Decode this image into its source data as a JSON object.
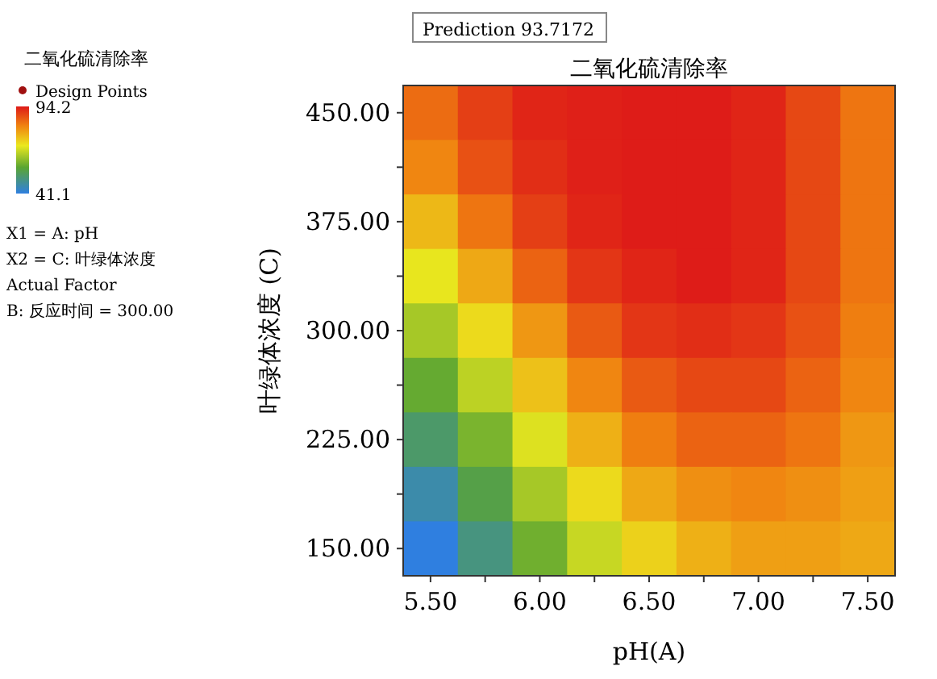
{
  "chart_data": {
    "type": "heatmap",
    "title": "二氧化硫清除率",
    "xlabel": "pH(A)",
    "ylabel": "叶绿体浓度 (C)",
    "clabel": "二氧化硫清除率",
    "annotations": [
      "Prediction 93.7172",
      "Design Points",
      "X1 = A: pH",
      "X2 = C: 叶绿体浓度",
      "Actual Factor",
      "B: 反应时间 = 300.00"
    ],
    "categories": [
      "5.50",
      null,
      "6.00",
      null,
      "6.50",
      null,
      "7.00",
      null,
      "7.50"
    ],
    "y_categories": [
      "450.00",
      null,
      "375.00",
      null,
      "300.00",
      null,
      "225.00",
      null,
      "150.00"
    ],
    "clim": [
      41.1,
      94.2
    ],
    "cticks": [
      41.1,
      94.2
    ],
    "cells": [
      [
        85,
        90,
        93,
        93.5,
        94,
        94,
        93,
        89,
        84
      ],
      [
        82,
        88,
        92,
        93.5,
        94,
        94,
        93,
        89,
        84
      ],
      [
        76,
        84,
        90,
        93,
        94,
        94,
        93,
        89,
        84
      ],
      [
        70,
        78,
        86,
        91,
        93,
        94,
        93,
        89,
        84
      ],
      [
        64,
        72,
        80,
        87,
        91,
        92,
        91,
        88,
        83
      ],
      [
        58,
        66,
        75,
        82,
        87,
        89,
        89,
        86,
        82
      ],
      [
        52,
        60,
        69,
        77,
        83,
        86,
        86,
        84,
        80
      ],
      [
        46,
        55,
        64,
        72,
        78,
        81,
        82,
        81,
        79
      ],
      [
        41.1,
        50,
        59,
        67,
        73,
        77,
        79,
        79,
        78
      ]
    ]
  }
}
